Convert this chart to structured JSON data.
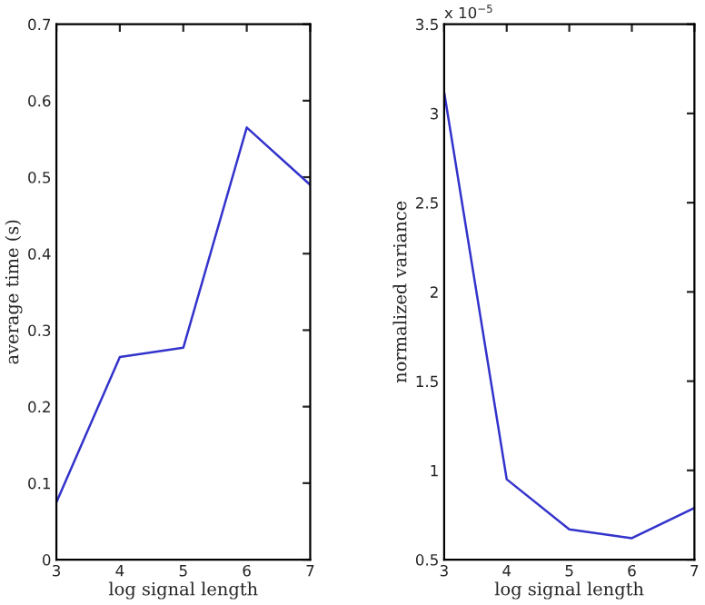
{
  "chart_data": [
    {
      "type": "line",
      "xlabel": "log signal length",
      "ylabel": "average time (s)",
      "x": [
        3,
        4,
        5,
        6,
        7
      ],
      "series": [
        {
          "color": "#3333cc",
          "values": [
            0.075,
            0.265,
            0.277,
            0.565,
            0.49
          ]
        }
      ],
      "xlim": [
        3,
        7
      ],
      "xticks": [
        3,
        4,
        5,
        6,
        7
      ],
      "ylim": [
        0,
        0.7
      ],
      "yticks": [
        0,
        0.1,
        0.2,
        0.3,
        0.4,
        0.5,
        0.6,
        0.7
      ],
      "grid": false,
      "marker": "none",
      "line_style": "solid"
    },
    {
      "type": "line",
      "xlabel": "log signal length",
      "ylabel": "normalized variance",
      "annotations": [
        "x 10$^{−5}$"
      ],
      "x": [
        3,
        4,
        5,
        6,
        7
      ],
      "series": [
        {
          "color": "#3333cc",
          "values": [
            3.12,
            0.95,
            0.67,
            0.62,
            0.79
          ]
        }
      ],
      "xlim": [
        3,
        7
      ],
      "xticks": [
        3,
        4,
        5,
        6,
        7
      ],
      "ylim": [
        0.5,
        3.5
      ],
      "yticks": [
        0.5,
        1,
        1.5,
        2,
        2.5,
        3,
        3.5
      ],
      "grid": false,
      "marker": "none",
      "line_style": "solid"
    }
  ]
}
